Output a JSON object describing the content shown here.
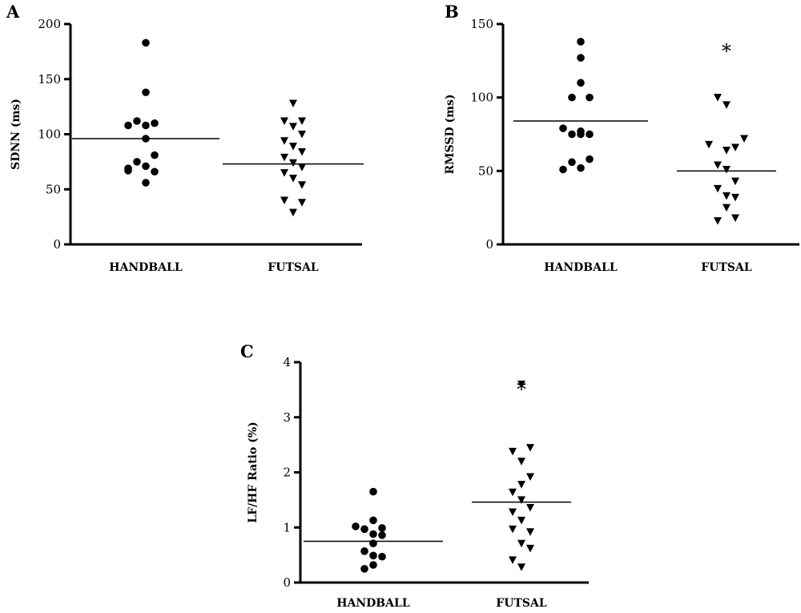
{
  "chart_data": [
    {
      "type": "scatter",
      "panel_label": "A",
      "ylabel": "SDNN (ms)",
      "xlabel": "",
      "ylim": [
        0,
        200
      ],
      "yticks": [
        0,
        50,
        100,
        150,
        200
      ],
      "categories": [
        "HANDBALL",
        "FUTSAL"
      ],
      "significance": [
        "",
        ""
      ],
      "series": [
        {
          "category": "HANDBALL",
          "marker": "circle",
          "mean": 96,
          "points": [
            {
              "x": 0,
              "y": 183
            },
            {
              "x": 0,
              "y": 138
            },
            {
              "x": -1,
              "y": 112
            },
            {
              "x": -2,
              "y": 108
            },
            {
              "x": 0,
              "y": 108
            },
            {
              "x": 1,
              "y": 110
            },
            {
              "x": 0,
              "y": 96
            },
            {
              "x": 1,
              "y": 81
            },
            {
              "x": -1,
              "y": 75
            },
            {
              "x": -2,
              "y": 69
            },
            {
              "x": 0,
              "y": 71
            },
            {
              "x": -2,
              "y": 67
            },
            {
              "x": 1,
              "y": 66
            },
            {
              "x": 0,
              "y": 56
            }
          ]
        },
        {
          "category": "FUTSAL",
          "marker": "triangle-down",
          "mean": 73,
          "points": [
            {
              "x": 0,
              "y": 128
            },
            {
              "x": -1,
              "y": 112
            },
            {
              "x": 1,
              "y": 112
            },
            {
              "x": 0,
              "y": 107
            },
            {
              "x": 1,
              "y": 100
            },
            {
              "x": -1,
              "y": 94
            },
            {
              "x": 0,
              "y": 89
            },
            {
              "x": 1,
              "y": 84
            },
            {
              "x": -1,
              "y": 79
            },
            {
              "x": 0,
              "y": 74
            },
            {
              "x": 1,
              "y": 70
            },
            {
              "x": -1,
              "y": 65
            },
            {
              "x": 0,
              "y": 60
            },
            {
              "x": 1,
              "y": 54
            },
            {
              "x": -1,
              "y": 40
            },
            {
              "x": 1,
              "y": 38
            },
            {
              "x": 0,
              "y": 29
            }
          ]
        }
      ]
    },
    {
      "type": "scatter",
      "panel_label": "B",
      "ylabel": "RMSSD (ms)",
      "xlabel": "",
      "ylim": [
        0,
        150
      ],
      "yticks": [
        0,
        50,
        100,
        150
      ],
      "categories": [
        "HANDBALL",
        "FUTSAL"
      ],
      "significance": [
        "",
        "*"
      ],
      "series": [
        {
          "category": "HANDBALL",
          "marker": "circle",
          "mean": 84,
          "points": [
            {
              "x": 0,
              "y": 138
            },
            {
              "x": 0,
              "y": 127
            },
            {
              "x": 0,
              "y": 110
            },
            {
              "x": -1,
              "y": 100
            },
            {
              "x": 1,
              "y": 100
            },
            {
              "x": -2,
              "y": 79
            },
            {
              "x": 0,
              "y": 77
            },
            {
              "x": 1,
              "y": 75
            },
            {
              "x": -1,
              "y": 75
            },
            {
              "x": 0,
              "y": 75
            },
            {
              "x": 1,
              "y": 58
            },
            {
              "x": -1,
              "y": 56
            },
            {
              "x": -2,
              "y": 51
            },
            {
              "x": 0,
              "y": 52
            }
          ]
        },
        {
          "category": "FUTSAL",
          "marker": "triangle-down",
          "mean": 50,
          "points": [
            {
              "x": -1,
              "y": 100
            },
            {
              "x": 0,
              "y": 95
            },
            {
              "x": 2,
              "y": 72
            },
            {
              "x": -2,
              "y": 68
            },
            {
              "x": 1,
              "y": 66
            },
            {
              "x": 0,
              "y": 64
            },
            {
              "x": -1,
              "y": 54
            },
            {
              "x": 0,
              "y": 51
            },
            {
              "x": 1,
              "y": 43
            },
            {
              "x": -1,
              "y": 38
            },
            {
              "x": 0,
              "y": 33
            },
            {
              "x": 1,
              "y": 32
            },
            {
              "x": 0,
              "y": 25
            },
            {
              "x": 1,
              "y": 18
            },
            {
              "x": -1,
              "y": 16
            }
          ]
        }
      ]
    },
    {
      "type": "scatter",
      "panel_label": "C",
      "ylabel": "LF/HF Ratio (%)",
      "xlabel": "",
      "ylim": [
        0,
        4
      ],
      "yticks": [
        0,
        1,
        2,
        3,
        4
      ],
      "categories": [
        "HANDBALL",
        "FUTSAL"
      ],
      "significance": [
        "",
        "*"
      ],
      "series": [
        {
          "category": "HANDBALL",
          "marker": "circle",
          "mean": 0.75,
          "points": [
            {
              "x": 0,
              "y": 1.65
            },
            {
              "x": 0,
              "y": 1.13
            },
            {
              "x": -2,
              "y": 1.02
            },
            {
              "x": 1,
              "y": 0.99
            },
            {
              "x": -1,
              "y": 0.97
            },
            {
              "x": 0,
              "y": 0.88
            },
            {
              "x": 1,
              "y": 0.86
            },
            {
              "x": 0,
              "y": 0.71
            },
            {
              "x": -1,
              "y": 0.57
            },
            {
              "x": 0,
              "y": 0.49
            },
            {
              "x": 1,
              "y": 0.47
            },
            {
              "x": 0,
              "y": 0.32
            },
            {
              "x": -1,
              "y": 0.25
            }
          ]
        },
        {
          "category": "FUTSAL",
          "marker": "triangle-down",
          "mean": 1.46,
          "points": [
            {
              "x": 0,
              "y": 3.6
            },
            {
              "x": 1,
              "y": 2.45
            },
            {
              "x": -1,
              "y": 2.38
            },
            {
              "x": 0,
              "y": 2.2
            },
            {
              "x": 1,
              "y": 1.92
            },
            {
              "x": 0,
              "y": 1.78
            },
            {
              "x": -1,
              "y": 1.64
            },
            {
              "x": 0,
              "y": 1.5
            },
            {
              "x": 1,
              "y": 1.36
            },
            {
              "x": -1,
              "y": 1.28
            },
            {
              "x": 0,
              "y": 1.13
            },
            {
              "x": -1,
              "y": 0.97
            },
            {
              "x": 1,
              "y": 0.92
            },
            {
              "x": 0,
              "y": 0.71
            },
            {
              "x": 1,
              "y": 0.62
            },
            {
              "x": -1,
              "y": 0.41
            },
            {
              "x": 0,
              "y": 0.28
            }
          ]
        }
      ]
    }
  ]
}
